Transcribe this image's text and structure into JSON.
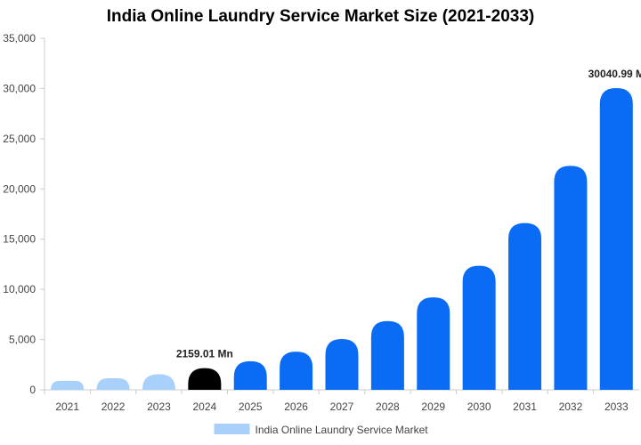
{
  "chart_data": {
    "type": "bar",
    "title": "India Online Laundry Service Market Size (2021-2033)",
    "xlabel": "",
    "ylabel": "",
    "ylim": [
      0,
      35000
    ],
    "y_ticks": [
      "0",
      "5,000",
      "10,000",
      "15,000",
      "20,000",
      "25,000",
      "30,000",
      "35,000"
    ],
    "categories": [
      "2021",
      "2022",
      "2023",
      "2024",
      "2025",
      "2026",
      "2027",
      "2028",
      "2029",
      "2030",
      "2031",
      "2032",
      "2033"
    ],
    "series": [
      {
        "name": "India Online Laundry Service Market",
        "values": [
          900,
          1150,
          1550,
          2159.01,
          2850,
          3800,
          5050,
          6850,
          9200,
          12350,
          16600,
          22300,
          30040.99
        ]
      }
    ],
    "bar_colors": [
      "#a8d0fb",
      "#a8d0fb",
      "#a8d0fb",
      "#000000",
      "#0a6cf5",
      "#0a6cf5",
      "#0a6cf5",
      "#0a6cf5",
      "#0a6cf5",
      "#0a6cf5",
      "#0a6cf5",
      "#0a6cf5",
      "#0a6cf5"
    ],
    "annotations": [
      {
        "category": "2024",
        "text": "2159.01 Mn"
      },
      {
        "category": "2033",
        "text": "30040.99 M"
      }
    ],
    "grid": false,
    "legend": {
      "position": "bottom",
      "color": "#a8d0fb"
    }
  }
}
